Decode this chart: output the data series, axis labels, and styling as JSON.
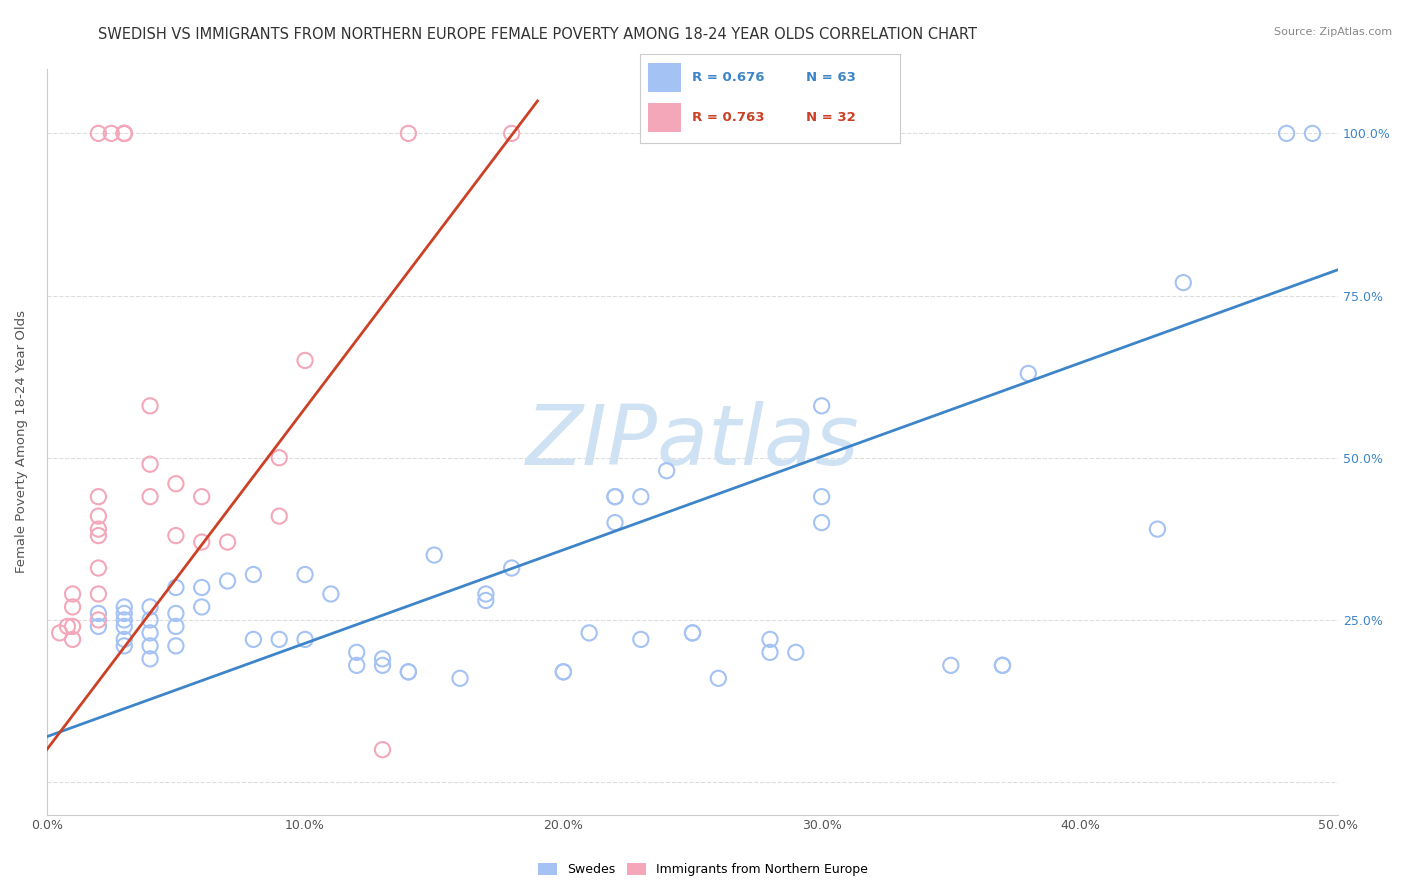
{
  "title": "SWEDISH VS IMMIGRANTS FROM NORTHERN EUROPE FEMALE POVERTY AMONG 18-24 YEAR OLDS CORRELATION CHART",
  "source": "Source: ZipAtlas.com",
  "ylabel": "Female Poverty Among 18-24 Year Olds",
  "xlim": [
    0.0,
    50.0
  ],
  "ylim": [
    -5.0,
    110.0
  ],
  "xticks": [
    0.0,
    10.0,
    20.0,
    30.0,
    40.0,
    50.0
  ],
  "yticks": [
    0.0,
    25.0,
    50.0,
    75.0,
    100.0
  ],
  "xticklabels": [
    "0.0%",
    "10.0%",
    "20.0%",
    "30.0%",
    "40.0%",
    "50.0%"
  ],
  "yticklabels_right": [
    "",
    "25.0%",
    "50.0%",
    "75.0%",
    "100.0%"
  ],
  "legend_r1": "R = 0.676",
  "legend_n1": "N = 63",
  "legend_r2": "R = 0.763",
  "legend_n2": "N = 32",
  "blue_color": "#a4c2f4",
  "pink_color": "#f4a7b9",
  "blue_line_color": "#3d85c8",
  "pink_line_color": "#cc4125",
  "watermark": "ZIPatlas",
  "watermark_color": "#cfe2f3",
  "blue_scatter_x": [
    2.0,
    2.0,
    3.0,
    3.0,
    3.0,
    3.0,
    3.0,
    3.0,
    4.0,
    4.0,
    4.0,
    4.0,
    4.0,
    5.0,
    5.0,
    5.0,
    5.0,
    6.0,
    6.0,
    7.0,
    8.0,
    8.0,
    9.0,
    10.0,
    10.0,
    11.0,
    12.0,
    12.0,
    13.0,
    13.0,
    14.0,
    14.0,
    15.0,
    16.0,
    17.0,
    17.0,
    18.0,
    20.0,
    20.0,
    21.0,
    22.0,
    22.0,
    22.0,
    23.0,
    23.0,
    24.0,
    25.0,
    25.0,
    26.0,
    28.0,
    28.0,
    29.0,
    30.0,
    30.0,
    30.0,
    35.0,
    37.0,
    37.0,
    38.0,
    43.0,
    44.0,
    48.0,
    49.0
  ],
  "blue_scatter_y": [
    24.0,
    26.0,
    21.0,
    22.0,
    24.0,
    25.0,
    26.0,
    27.0,
    19.0,
    21.0,
    23.0,
    25.0,
    27.0,
    21.0,
    24.0,
    26.0,
    30.0,
    27.0,
    30.0,
    31.0,
    22.0,
    32.0,
    22.0,
    22.0,
    32.0,
    29.0,
    18.0,
    20.0,
    18.0,
    19.0,
    17.0,
    17.0,
    35.0,
    16.0,
    28.0,
    29.0,
    33.0,
    17.0,
    17.0,
    23.0,
    40.0,
    44.0,
    44.0,
    22.0,
    44.0,
    48.0,
    23.0,
    23.0,
    16.0,
    20.0,
    22.0,
    20.0,
    40.0,
    44.0,
    58.0,
    18.0,
    18.0,
    18.0,
    63.0,
    39.0,
    77.0,
    100.0,
    100.0
  ],
  "pink_scatter_x": [
    0.5,
    0.8,
    1.0,
    1.0,
    1.0,
    1.0,
    2.0,
    2.0,
    2.0,
    2.0,
    2.0,
    2.0,
    2.0,
    2.0,
    2.5,
    3.0,
    3.0,
    3.0,
    4.0,
    4.0,
    4.0,
    5.0,
    5.0,
    6.0,
    6.0,
    7.0,
    9.0,
    9.0,
    10.0,
    13.0,
    14.0,
    18.0
  ],
  "pink_scatter_y": [
    23.0,
    24.0,
    22.0,
    24.0,
    27.0,
    29.0,
    25.0,
    29.0,
    33.0,
    38.0,
    39.0,
    41.0,
    44.0,
    100.0,
    100.0,
    100.0,
    100.0,
    100.0,
    44.0,
    49.0,
    58.0,
    38.0,
    46.0,
    37.0,
    44.0,
    37.0,
    41.0,
    50.0,
    65.0,
    5.0,
    100.0,
    100.0
  ],
  "blue_line_x": [
    0.0,
    50.0
  ],
  "blue_line_y": [
    7.0,
    79.0
  ],
  "pink_line_x": [
    0.0,
    19.0
  ],
  "pink_line_y": [
    5.0,
    105.0
  ],
  "background_color": "#ffffff",
  "grid_color": "#dddddd",
  "title_fontsize": 10.5,
  "axis_label_fontsize": 9.5,
  "tick_fontsize": 9,
  "scatter_size": 120
}
